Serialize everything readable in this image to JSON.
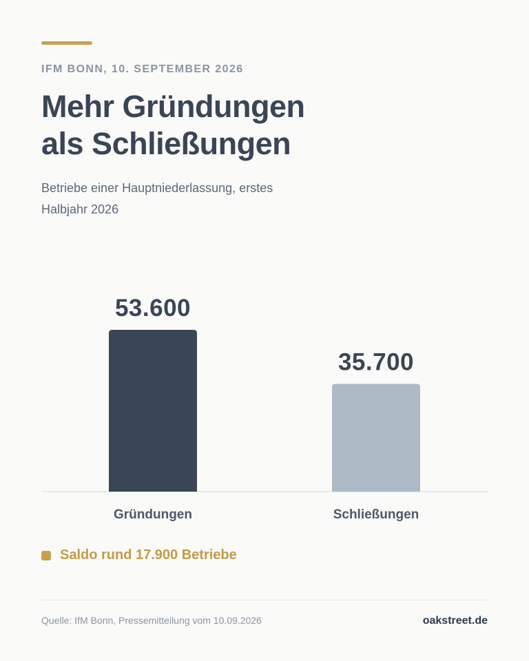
{
  "header": {
    "dateline": "IFM BONN, 10. SEPTEMBER 2026",
    "title_line1": "Mehr Gründungen",
    "title_line2": "als Schließungen",
    "subtitle": "Betriebe einer Hauptniederlassung, erstes Halbjahr 2026"
  },
  "chart_data": {
    "type": "bar",
    "categories": [
      "Gründungen",
      "Schließungen"
    ],
    "values": [
      53600,
      35700
    ],
    "value_labels": [
      "53.600",
      "35.700"
    ],
    "colors": [
      "#3a4556",
      "#adbac6"
    ],
    "ylim": [
      0,
      60000
    ],
    "grid": false,
    "legend": "none",
    "title": "Mehr Gründungen als Schließungen",
    "subtitle": "Betriebe einer Hauptniederlassung, erstes Halbjahr 2026"
  },
  "note": {
    "text": "Saldo rund 17.900 Betriebe",
    "color": "#c9a14a"
  },
  "footer": {
    "source": "Quelle: IfM Bonn, Pressemitteilung vom 10.09.2026",
    "brand": "oakstreet.de"
  }
}
